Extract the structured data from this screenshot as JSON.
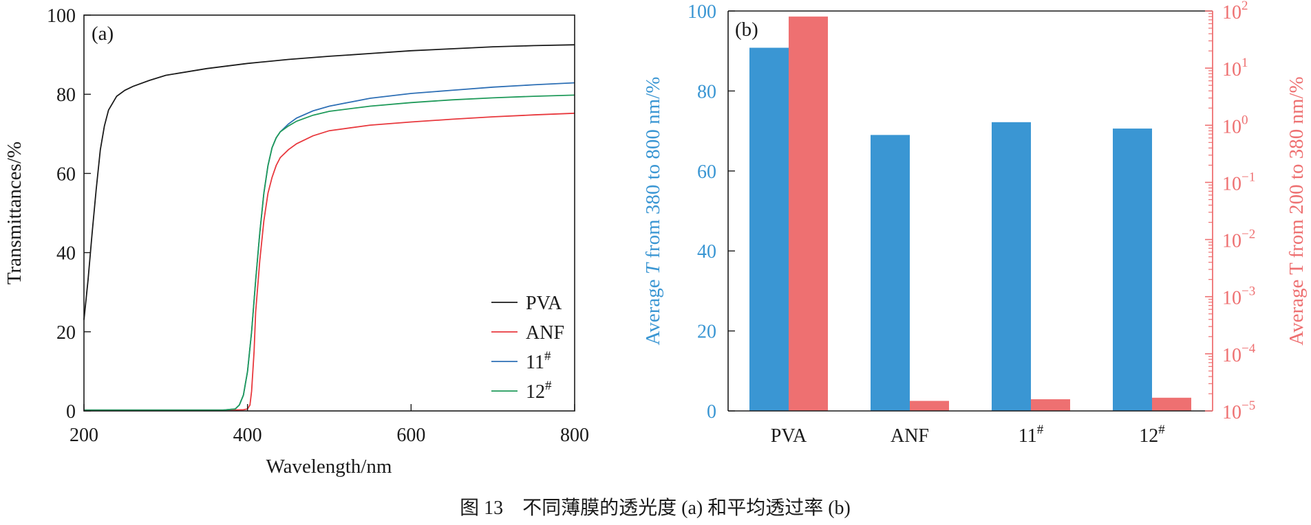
{
  "chart_data": [
    {
      "panel": "(a)",
      "type": "line",
      "xlabel": "Wavelength/nm",
      "ylabel": "Transmittances/%",
      "xlim": [
        200,
        800
      ],
      "ylim": [
        0,
        100
      ],
      "xticks": [
        "200",
        "400",
        "600",
        "800"
      ],
      "yticks": [
        "0",
        "20",
        "40",
        "60",
        "80",
        "100"
      ],
      "legend_position": "bottom-right",
      "grid": false,
      "series": [
        {
          "name": "PVA",
          "sup": "",
          "color": "#1a1a1a",
          "x": [
            200,
            205,
            210,
            215,
            220,
            225,
            230,
            240,
            250,
            260,
            280,
            300,
            350,
            400,
            450,
            500,
            550,
            600,
            650,
            700,
            750,
            800
          ],
          "y": [
            23,
            33,
            45,
            56,
            66,
            72,
            76,
            79.5,
            81,
            82,
            83.5,
            84.8,
            86.5,
            87.8,
            88.8,
            89.6,
            90.3,
            91,
            91.5,
            92,
            92.3,
            92.5
          ]
        },
        {
          "name": "ANF",
          "sup": "",
          "color": "#e8383d",
          "x": [
            200,
            300,
            380,
            395,
            400,
            403,
            405,
            408,
            410,
            415,
            420,
            425,
            430,
            435,
            440,
            450,
            460,
            480,
            500,
            550,
            600,
            650,
            700,
            750,
            800
          ],
          "y": [
            0.2,
            0.2,
            0.2,
            0.3,
            0.5,
            1.5,
            5,
            15,
            25,
            38,
            48,
            55,
            59,
            62,
            64,
            66,
            67.5,
            69.5,
            70.8,
            72.2,
            73,
            73.7,
            74.3,
            74.8,
            75.2
          ]
        },
        {
          "name": "11",
          "sup": "#",
          "color": "#2d6fb5",
          "x": [
            200,
            300,
            370,
            385,
            390,
            395,
            400,
            405,
            410,
            415,
            420,
            425,
            430,
            435,
            440,
            450,
            460,
            480,
            500,
            550,
            600,
            650,
            700,
            750,
            800
          ],
          "y": [
            0.2,
            0.2,
            0.2,
            0.5,
            1.5,
            4,
            10,
            20,
            33,
            45,
            55,
            62,
            66.5,
            69,
            70.5,
            72.5,
            74,
            75.8,
            77,
            79,
            80.2,
            81,
            81.8,
            82.4,
            82.9
          ]
        },
        {
          "name": "12",
          "sup": "#",
          "color": "#1f9a5a",
          "x": [
            200,
            300,
            370,
            385,
            390,
            395,
            400,
            405,
            410,
            415,
            420,
            425,
            430,
            435,
            440,
            450,
            460,
            480,
            500,
            550,
            600,
            650,
            700,
            750,
            800
          ],
          "y": [
            0.2,
            0.2,
            0.2,
            0.5,
            1.5,
            4,
            10,
            20,
            33,
            45,
            55,
            62,
            66.5,
            69,
            70.5,
            72,
            73.2,
            74.7,
            75.7,
            77,
            77.9,
            78.6,
            79.1,
            79.5,
            79.8
          ]
        }
      ]
    },
    {
      "panel": "(b)",
      "type": "bar",
      "categories": [
        {
          "name": "PVA",
          "sup": ""
        },
        {
          "name": "ANF",
          "sup": ""
        },
        {
          "name": "11",
          "sup": "#"
        },
        {
          "name": "12",
          "sup": "#"
        }
      ],
      "ylabel_left": {
        "pre": "Average ",
        "italic": "T",
        "post": " from 380 to 800 nm/%"
      },
      "ylabel_right": "Average T from 200 to 380 nm/%",
      "ylim_left": [
        0,
        100
      ],
      "yticks_left": [
        "0",
        "20",
        "40",
        "60",
        "80",
        "100"
      ],
      "ylim_right_log": [
        1e-05,
        100
      ],
      "yticks_right": [
        {
          "base": "10",
          "exp": "2"
        },
        {
          "base": "10",
          "exp": "1"
        },
        {
          "base": "10",
          "exp": "0"
        },
        {
          "base": "10",
          "exp": "−1"
        },
        {
          "base": "10",
          "exp": "−2"
        },
        {
          "base": "10",
          "exp": "−3"
        },
        {
          "base": "10",
          "exp": "−4"
        },
        {
          "base": "10",
          "exp": "−5"
        }
      ],
      "left_color": "#3a96d3",
      "right_color": "#ee7071",
      "series": [
        {
          "axis": "left",
          "color": "#3a96d3",
          "values": [
            90.8,
            69,
            72.2,
            70.6
          ]
        },
        {
          "axis": "right",
          "scale": "log",
          "color": "#ee7071",
          "values": [
            80,
            1.5e-05,
            1.6e-05,
            1.7e-05
          ]
        }
      ]
    }
  ],
  "caption": "图 13　不同薄膜的透光度 (a) 和平均透过率 (b)"
}
